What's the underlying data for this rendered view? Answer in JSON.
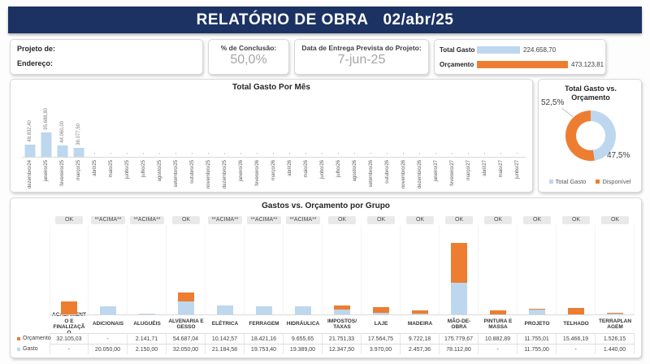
{
  "header": {
    "title": "RELATÓRIO DE OBRA",
    "date": "02/abr/25"
  },
  "info": {
    "project_label": "Projeto de:",
    "address_label": "Endereço:",
    "completion_label": "% de Conclusão:",
    "completion_value": "50,0%",
    "delivery_label": "Data de Entrega Prevista do Projeto:",
    "delivery_value": "7-jun-25",
    "total_spent_label": "Total Gasto",
    "total_spent_value": "224.658,70",
    "total_spent_num": 224658.7,
    "budget_label": "Orçamento",
    "budget_value": "473.123,81",
    "budget_num": 473123.81
  },
  "colors": {
    "navy": "#1B3263",
    "bar_blue": "#BDD7EE",
    "accent_orange": "#ED7D31"
  },
  "chart_data": [
    {
      "type": "bar",
      "title": "Total Gasto Por Mês",
      "categories": [
        "dezembro/24",
        "janeiro/25",
        "fevereiro/25",
        "março/25",
        "abril/25",
        "maio/25",
        "junho/25",
        "julho/25",
        "agosto/25",
        "setembro/25",
        "outubro/25",
        "novembro/25",
        "dezembro/25",
        "janeiro/26",
        "fevereiro/26",
        "março/26",
        "abril/26",
        "maio/26",
        "junho/26",
        "julho/26",
        "agosto/26",
        "setembro/26",
        "outubro/26",
        "novembro/26",
        "dezembro/26",
        "janeiro/27",
        "fevereiro/27",
        "março/27",
        "abril/27",
        "maio/27",
        "junho/27"
      ],
      "values": [
        48832.4,
        95688.8,
        44060.0,
        36077.5,
        0,
        0,
        0,
        0,
        0,
        0,
        0,
        0,
        0,
        0,
        0,
        0,
        0,
        0,
        0,
        0,
        0,
        0,
        0,
        0,
        0,
        0,
        0,
        0,
        0,
        0,
        0
      ],
      "labels": [
        "48.832,40",
        "95.688,80",
        "44.060,00",
        "36.077,50",
        "-",
        "-",
        "-",
        "-",
        "-",
        "-",
        "-",
        "-",
        "-",
        "-",
        "-",
        "-",
        "-",
        "-",
        "-",
        "-",
        "-",
        "-",
        "-",
        "-",
        "-",
        "-",
        "-",
        "-",
        "-",
        "-",
        "-"
      ],
      "ylim": [
        0,
        100000
      ],
      "bar_color": "#BDD7EE"
    },
    {
      "type": "pie",
      "title": "Total Gasto vs. Orçamento",
      "slices": [
        {
          "name": "Total Gasto",
          "pct": 47.5,
          "pct_label": "47,5%",
          "color": "#BDD7EE"
        },
        {
          "name": "Disponível",
          "pct": 52.5,
          "pct_label": "52,5%",
          "color": "#ED7D31"
        }
      ],
      "legend_position": "bottom",
      "donut": true
    },
    {
      "type": "bar",
      "subtype": "stacked-with-table",
      "title": "Gastos vs. Orçamento por Grupo",
      "row_labels": [
        {
          "label": "Orçamento",
          "marker_color": "#ED7D31"
        },
        {
          "label": "Gasto",
          "marker_color": "#BDD7EE"
        }
      ],
      "status_values": {
        "ok": "OK",
        "over": "**ACIMA**"
      },
      "gasto_color": "#BDD7EE",
      "restante_color": "#ED7D31",
      "ylim": [
        0,
        180000
      ],
      "groups": [
        {
          "name": "ACABAMENTO E FINALIZAÇÃO",
          "status": "OK",
          "orcamento": 32105.03,
          "gasto": 0,
          "orcamento_label": "32.105,03",
          "gasto_label": "-"
        },
        {
          "name": "ADICIONAIS",
          "status": "**ACIMA**",
          "orcamento": 0,
          "gasto": 20050.0,
          "orcamento_label": "-",
          "gasto_label": "20.050,00"
        },
        {
          "name": "ALUGUÉIS",
          "status": "**ACIMA**",
          "orcamento": 2141.71,
          "gasto": 2150.0,
          "orcamento_label": "2.141,71",
          "gasto_label": "2.150,00"
        },
        {
          "name": "ALVENARIA E GESSO",
          "status": "OK",
          "orcamento": 54687.04,
          "gasto": 32050.0,
          "orcamento_label": "54.687,04",
          "gasto_label": "32.050,00"
        },
        {
          "name": "ELÉTRICA",
          "status": "**ACIMA**",
          "orcamento": 10142.57,
          "gasto": 21184.58,
          "orcamento_label": "10.142,57",
          "gasto_label": "21.184,58"
        },
        {
          "name": "FERRAGEM",
          "status": "**ACIMA**",
          "orcamento": 18421.16,
          "gasto": 19753.4,
          "orcamento_label": "18.421,16",
          "gasto_label": "19.753,40"
        },
        {
          "name": "HIDRÁULICA",
          "status": "**ACIMA**",
          "orcamento": 9655.65,
          "gasto": 19389.0,
          "orcamento_label": "9.655,65",
          "gasto_label": "19.389,00"
        },
        {
          "name": "IMPOSTOS/ TAXAS",
          "status": "OK",
          "orcamento": 21751.33,
          "gasto": 12347.5,
          "orcamento_label": "21.751,33",
          "gasto_label": "12.347,50"
        },
        {
          "name": "LAJE",
          "status": "OK",
          "orcamento": 17564.75,
          "gasto": 3970.0,
          "orcamento_label": "17.564,75",
          "gasto_label": "3.970,00"
        },
        {
          "name": "MADEIRA",
          "status": "OK",
          "orcamento": 9722.18,
          "gasto": 2457.36,
          "orcamento_label": "9.722,18",
          "gasto_label": "2.457,36"
        },
        {
          "name": "MÃO-DE-OBRA",
          "status": "OK",
          "orcamento": 175779.67,
          "gasto": 78112.8,
          "orcamento_label": "175.779,67",
          "gasto_label": "78.112,80"
        },
        {
          "name": "PINTURA E MASSA",
          "status": "OK",
          "orcamento": 10882.89,
          "gasto": 0,
          "orcamento_label": "10.882,89",
          "gasto_label": "-"
        },
        {
          "name": "PROJETO",
          "status": "OK",
          "orcamento": 11755.01,
          "gasto": 11755.0,
          "orcamento_label": "11.755,01",
          "gasto_label": "11.755,00"
        },
        {
          "name": "TELHADO",
          "status": "OK",
          "orcamento": 15466.19,
          "gasto": 0,
          "orcamento_label": "15.466,19",
          "gasto_label": "-"
        },
        {
          "name": "TERRAPLANAGEM",
          "status": "OK",
          "orcamento": 1526.15,
          "gasto": 1440.0,
          "orcamento_label": "1.526,15",
          "gasto_label": "1.440,00"
        }
      ]
    }
  ]
}
